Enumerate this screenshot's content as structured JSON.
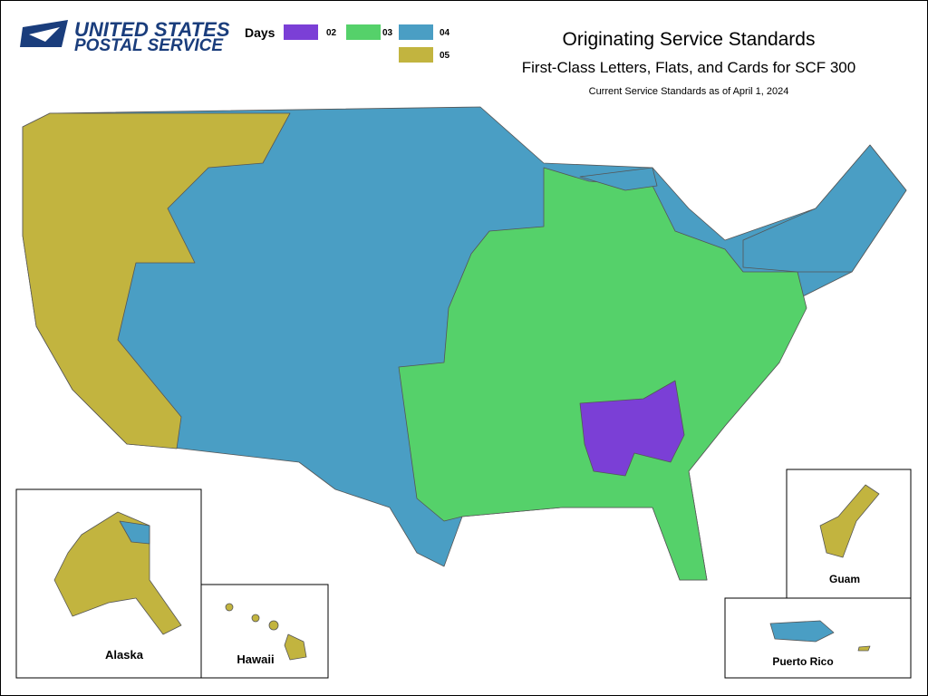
{
  "header": {
    "logo_line1": "UNITED STATES",
    "logo_line2": "POSTAL SERVICE",
    "title": "Originating Service Standards",
    "subtitle": "First-Class Letters, Flats, and Cards for SCF 300",
    "note": "Current Service Standards as of April 1, 2024"
  },
  "legend": {
    "title": "Days",
    "items": [
      {
        "label": "02",
        "color": "#7b3fd6"
      },
      {
        "label": "03",
        "color": "#55d16a"
      },
      {
        "label": "04",
        "color": "#4a9ec4"
      },
      {
        "label": "05",
        "color": "#c2b43f"
      }
    ]
  },
  "insets": {
    "alaska": "Alaska",
    "hawaii": "Hawaii",
    "guam": "Guam",
    "puerto_rico": "Puerto Rico"
  }
}
